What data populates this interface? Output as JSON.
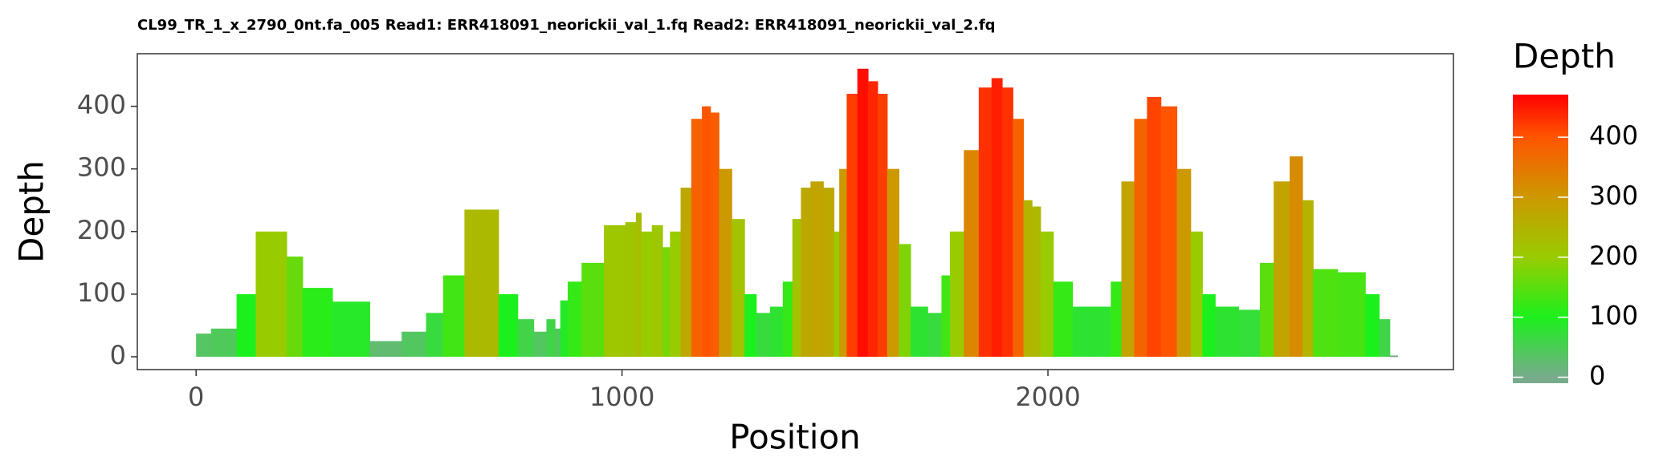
{
  "chart_data": {
    "type": "area",
    "title": "CL99_TR_1_x_2790_0nt.fa_005 Read1: ERR418091_neorickii_val_1.fq Read2: ERR418091_neorickii_val_2.fq",
    "x_label": "Position",
    "y_label": "Depth",
    "x": [
      0,
      70,
      120,
      160,
      195,
      230,
      270,
      370,
      445,
      520,
      560,
      600,
      660,
      685,
      735,
      775,
      810,
      835,
      850,
      860,
      885,
      925,
      990,
      1025,
      1040,
      1050,
      1090,
      1100,
      1125,
      1150,
      1175,
      1200,
      1215,
      1240,
      1275,
      1300,
      1330,
      1365,
      1390,
      1410,
      1430,
      1455,
      1490,
      1505,
      1515,
      1540,
      1565,
      1590,
      1610,
      1635,
      1665,
      1690,
      1745,
      1755,
      1785,
      1820,
      1855,
      1880,
      1905,
      1930,
      1955,
      1970,
      1995,
      2030,
      2085,
      2135,
      2160,
      2185,
      2220,
      2245,
      2285,
      2320,
      2350,
      2375,
      2410,
      2485,
      2510,
      2550,
      2585,
      2610,
      2635,
      2725,
      2765,
      2790,
      2815
    ],
    "values": [
      37,
      45,
      100,
      200,
      200,
      160,
      110,
      88,
      25,
      40,
      70,
      130,
      235,
      235,
      100,
      60,
      40,
      60,
      45,
      90,
      120,
      150,
      210,
      215,
      230,
      200,
      210,
      175,
      200,
      270,
      380,
      400,
      390,
      300,
      220,
      100,
      70,
      80,
      120,
      220,
      270,
      280,
      270,
      200,
      300,
      420,
      460,
      440,
      420,
      300,
      180,
      80,
      70,
      130,
      200,
      330,
      430,
      445,
      430,
      380,
      250,
      240,
      200,
      120,
      80,
      80,
      120,
      280,
      380,
      415,
      400,
      300,
      200,
      100,
      80,
      75,
      150,
      280,
      320,
      250,
      140,
      135,
      100,
      60,
      2
    ],
    "xlim": [
      -138,
      2952
    ],
    "xticks": [
      0,
      1000,
      2000
    ],
    "ylim": [
      -20.5,
      484
    ],
    "yticks": [
      0,
      100,
      200,
      300,
      400
    ],
    "legend_title": "Depth",
    "clim": [
      -10,
      471
    ],
    "cticks": [
      0,
      100,
      200,
      300,
      400
    ],
    "colorscale": [
      {
        "value": 0,
        "color": "#78ab8c"
      },
      {
        "value": 100,
        "color": "#1cf01c"
      },
      {
        "value": 200,
        "color": "#99cc00"
      },
      {
        "value": 300,
        "color": "#cc9900"
      },
      {
        "value": 400,
        "color": "#ff5500"
      },
      {
        "value": 471,
        "color": "#ff0000"
      }
    ]
  }
}
